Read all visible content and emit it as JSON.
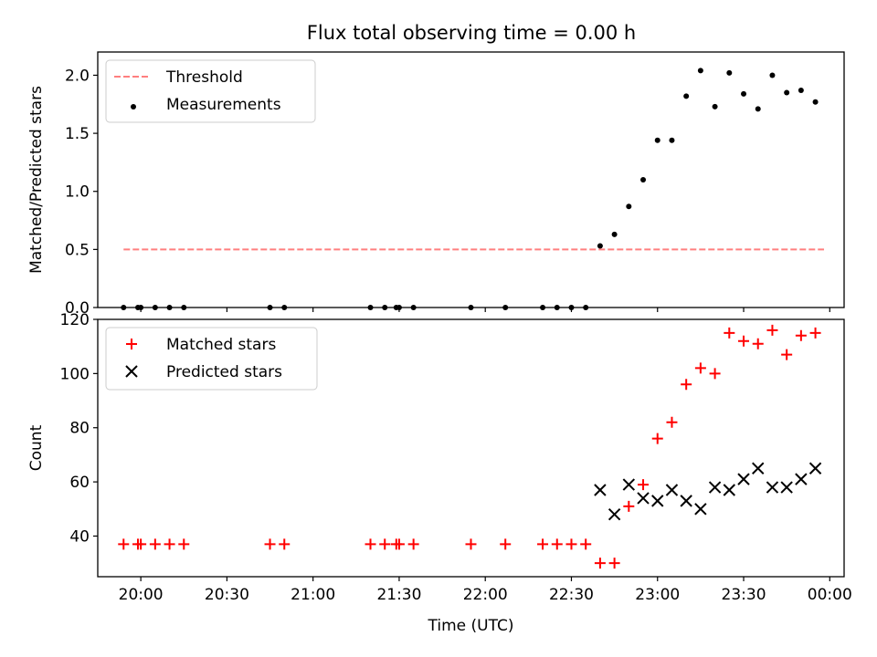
{
  "figure": {
    "title": "Flux total observing time = 0.00 h"
  },
  "chart_data": [
    {
      "type": "line",
      "title": "Flux total observing time = 0.00 h",
      "xlabel": "",
      "ylabel": "Matched/Predicted stars",
      "xlim": [
        "19:45",
        "00:05"
      ],
      "ylim": [
        0,
        2.2
      ],
      "x_ticks": [
        "20:00",
        "20:30",
        "21:00",
        "21:30",
        "22:00",
        "22:30",
        "23:00",
        "23:30",
        "00:00"
      ],
      "x_ticks_labeled": false,
      "y_ticks": [
        0.0,
        0.5,
        1.0,
        1.5,
        2.0
      ],
      "y_tick_labels": [
        "0.0",
        "0.5",
        "1.0",
        "1.5",
        "2.0"
      ],
      "grid": false,
      "legend": "top-left",
      "series": [
        {
          "name": "Threshold",
          "kind": "line",
          "style": "dashed",
          "color": "#ff7f7f",
          "x": [
            "19:54",
            "23:58"
          ],
          "y": [
            0.5,
            0.5
          ]
        },
        {
          "name": "Measurements",
          "kind": "scatter",
          "marker": "dot",
          "color": "#000000",
          "x": [
            "19:54",
            "19:59",
            "20:00",
            "20:05",
            "20:10",
            "20:15",
            "20:45",
            "20:50",
            "21:20",
            "21:25",
            "21:29",
            "21:30",
            "21:35",
            "21:55",
            "22:07",
            "22:20",
            "22:25",
            "22:30",
            "22:35",
            "22:40",
            "22:45",
            "22:50",
            "22:55",
            "23:00",
            "23:05",
            "23:10",
            "23:15",
            "23:20",
            "23:25",
            "23:30",
            "23:35",
            "23:40",
            "23:45",
            "23:50",
            "23:55"
          ],
          "y": [
            0.0,
            0.0,
            0.0,
            0.0,
            0.0,
            0.0,
            0.0,
            0.0,
            0.0,
            0.0,
            0.0,
            0.0,
            0.0,
            0.0,
            0.0,
            0.0,
            0.0,
            0.0,
            0.0,
            0.53,
            0.63,
            0.87,
            1.1,
            1.44,
            1.44,
            1.82,
            2.04,
            1.73,
            2.02,
            1.84,
            1.71,
            2.0,
            1.85,
            1.87,
            1.77
          ]
        }
      ]
    },
    {
      "type": "scatter",
      "title": "",
      "xlabel": "Time (UTC)",
      "ylabel": "Count",
      "xlim": [
        "19:45",
        "00:05"
      ],
      "ylim": [
        25,
        120
      ],
      "x_ticks": [
        "20:00",
        "20:30",
        "21:00",
        "21:30",
        "22:00",
        "22:30",
        "23:00",
        "23:30",
        "00:00"
      ],
      "y_ticks": [
        40,
        60,
        80,
        100,
        120
      ],
      "grid": false,
      "legend": "top-left",
      "series": [
        {
          "name": "Matched stars",
          "marker": "plus",
          "color": "#ff0000",
          "x": [
            "19:54",
            "19:59",
            "20:00",
            "20:05",
            "20:10",
            "20:15",
            "20:45",
            "20:50",
            "21:20",
            "21:25",
            "21:29",
            "21:30",
            "21:35",
            "21:55",
            "22:07",
            "22:20",
            "22:25",
            "22:30",
            "22:35",
            "22:40",
            "22:45",
            "22:50",
            "22:55",
            "23:00",
            "23:05",
            "23:10",
            "23:15",
            "23:20",
            "23:25",
            "23:30",
            "23:35",
            "23:40",
            "23:45",
            "23:50",
            "23:55"
          ],
          "y": [
            37,
            37,
            37,
            37,
            37,
            37,
            37,
            37,
            37,
            37,
            37,
            37,
            37,
            37,
            37,
            37,
            37,
            37,
            37,
            30,
            30,
            51,
            59,
            76,
            82,
            96,
            102,
            100,
            115,
            112,
            111,
            116,
            107,
            114,
            115
          ]
        },
        {
          "name": "Predicted stars",
          "marker": "x",
          "color": "#000000",
          "x": [
            "22:40",
            "22:45",
            "22:50",
            "22:55",
            "23:00",
            "23:05",
            "23:10",
            "23:15",
            "23:20",
            "23:25",
            "23:30",
            "23:35",
            "23:40",
            "23:45",
            "23:50",
            "23:55"
          ],
          "y": [
            57,
            48,
            59,
            54,
            53,
            57,
            53,
            50,
            58,
            57,
            61,
            65,
            58,
            58,
            61,
            65
          ]
        }
      ]
    }
  ]
}
